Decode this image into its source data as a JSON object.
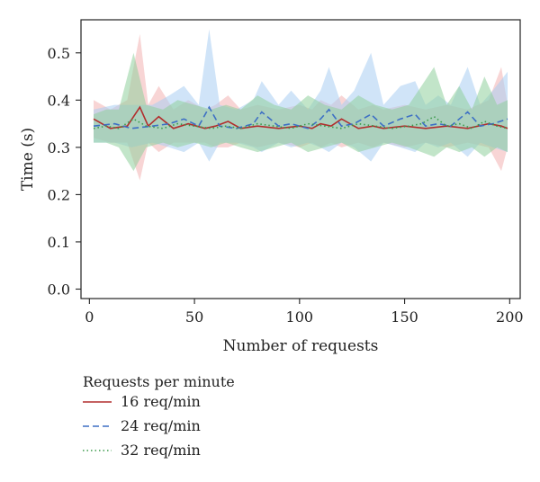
{
  "chart_data": {
    "type": "line",
    "xlabel": "Number of requests",
    "ylabel": "Time (s)",
    "xlim": [
      -4,
      205
    ],
    "ylim": [
      -0.02,
      0.57
    ],
    "xticks": [
      0,
      50,
      100,
      150,
      200
    ],
    "yticks": [
      0.0,
      0.1,
      0.2,
      0.3,
      0.4,
      0.5
    ],
    "xtick_labels": [
      "0",
      "50",
      "100",
      "150",
      "200"
    ],
    "ytick_labels": [
      "0.0",
      "0.1",
      "0.2",
      "0.3",
      "0.4",
      "0.5"
    ],
    "grid": false,
    "legend_position": "bottom-left-outside",
    "legend_title": "Requests per minute",
    "series": [
      {
        "name": "16 req/min",
        "color": "#b22d2d",
        "band_color": "#f2b3b3",
        "line_style": "solid",
        "x": [
          2,
          10,
          18,
          24,
          28,
          33,
          40,
          47,
          55,
          60,
          66,
          72,
          80,
          90,
          100,
          106,
          110,
          115,
          120,
          128,
          135,
          140,
          150,
          160,
          170,
          180,
          190,
          196,
          199
        ],
        "y": [
          0.36,
          0.34,
          0.345,
          0.385,
          0.345,
          0.365,
          0.34,
          0.35,
          0.34,
          0.345,
          0.355,
          0.34,
          0.345,
          0.34,
          0.345,
          0.34,
          0.35,
          0.345,
          0.36,
          0.34,
          0.345,
          0.34,
          0.345,
          0.34,
          0.345,
          0.34,
          0.35,
          0.345,
          0.34
        ],
        "lower": [
          0.32,
          0.31,
          0.31,
          0.23,
          0.31,
          0.29,
          0.31,
          0.31,
          0.31,
          0.3,
          0.3,
          0.31,
          0.3,
          0.31,
          0.3,
          0.31,
          0.3,
          0.31,
          0.3,
          0.31,
          0.3,
          0.31,
          0.3,
          0.31,
          0.3,
          0.31,
          0.3,
          0.25,
          0.3
        ],
        "upper": [
          0.4,
          0.38,
          0.4,
          0.54,
          0.39,
          0.43,
          0.38,
          0.4,
          0.38,
          0.39,
          0.41,
          0.38,
          0.39,
          0.38,
          0.39,
          0.38,
          0.4,
          0.39,
          0.41,
          0.38,
          0.39,
          0.38,
          0.39,
          0.38,
          0.39,
          0.38,
          0.4,
          0.47,
          0.39
        ]
      },
      {
        "name": "24 req/min",
        "color": "#3d6fc4",
        "band_color": "#a9cdf2",
        "line_style": "dashed",
        "x": [
          2,
          12,
          20,
          30,
          38,
          45,
          52,
          57,
          62,
          70,
          78,
          82,
          90,
          96,
          104,
          110,
          114,
          120,
          126,
          134,
          140,
          148,
          155,
          160,
          166,
          172,
          180,
          186,
          192,
          199
        ],
        "y": [
          0.345,
          0.35,
          0.34,
          0.345,
          0.35,
          0.36,
          0.345,
          0.385,
          0.345,
          0.34,
          0.35,
          0.375,
          0.345,
          0.35,
          0.34,
          0.36,
          0.38,
          0.345,
          0.35,
          0.37,
          0.345,
          0.36,
          0.37,
          0.345,
          0.35,
          0.345,
          0.375,
          0.345,
          0.35,
          0.36
        ],
        "lower": [
          0.31,
          0.31,
          0.3,
          0.31,
          0.3,
          0.29,
          0.31,
          0.27,
          0.31,
          0.31,
          0.3,
          0.29,
          0.31,
          0.3,
          0.31,
          0.3,
          0.29,
          0.31,
          0.3,
          0.27,
          0.31,
          0.3,
          0.29,
          0.31,
          0.3,
          0.31,
          0.28,
          0.31,
          0.3,
          0.29
        ],
        "upper": [
          0.38,
          0.39,
          0.39,
          0.39,
          0.41,
          0.43,
          0.39,
          0.55,
          0.39,
          0.38,
          0.4,
          0.44,
          0.39,
          0.42,
          0.38,
          0.42,
          0.47,
          0.39,
          0.42,
          0.5,
          0.39,
          0.43,
          0.44,
          0.39,
          0.41,
          0.39,
          0.47,
          0.39,
          0.42,
          0.46
        ]
      },
      {
        "name": "32 req/min",
        "color": "#3a9a4a",
        "band_color": "#8fcf9c",
        "line_style": "dotted",
        "x": [
          2,
          8,
          14,
          21,
          27,
          35,
          42,
          50,
          58,
          65,
          72,
          80,
          88,
          96,
          104,
          112,
          120,
          128,
          136,
          144,
          152,
          158,
          164,
          170,
          176,
          182,
          188,
          194,
          199
        ],
        "y": [
          0.34,
          0.345,
          0.34,
          0.36,
          0.345,
          0.34,
          0.35,
          0.345,
          0.34,
          0.345,
          0.34,
          0.35,
          0.345,
          0.34,
          0.35,
          0.345,
          0.34,
          0.35,
          0.345,
          0.34,
          0.345,
          0.35,
          0.365,
          0.345,
          0.35,
          0.34,
          0.355,
          0.345,
          0.34
        ],
        "lower": [
          0.31,
          0.31,
          0.3,
          0.25,
          0.3,
          0.31,
          0.3,
          0.31,
          0.3,
          0.31,
          0.3,
          0.29,
          0.3,
          0.31,
          0.29,
          0.3,
          0.31,
          0.29,
          0.3,
          0.31,
          0.3,
          0.29,
          0.28,
          0.3,
          0.29,
          0.3,
          0.28,
          0.3,
          0.29
        ],
        "upper": [
          0.37,
          0.38,
          0.38,
          0.5,
          0.39,
          0.38,
          0.4,
          0.39,
          0.38,
          0.39,
          0.38,
          0.41,
          0.39,
          0.38,
          0.41,
          0.39,
          0.38,
          0.41,
          0.39,
          0.38,
          0.39,
          0.43,
          0.47,
          0.39,
          0.43,
          0.38,
          0.45,
          0.39,
          0.4
        ]
      }
    ]
  }
}
